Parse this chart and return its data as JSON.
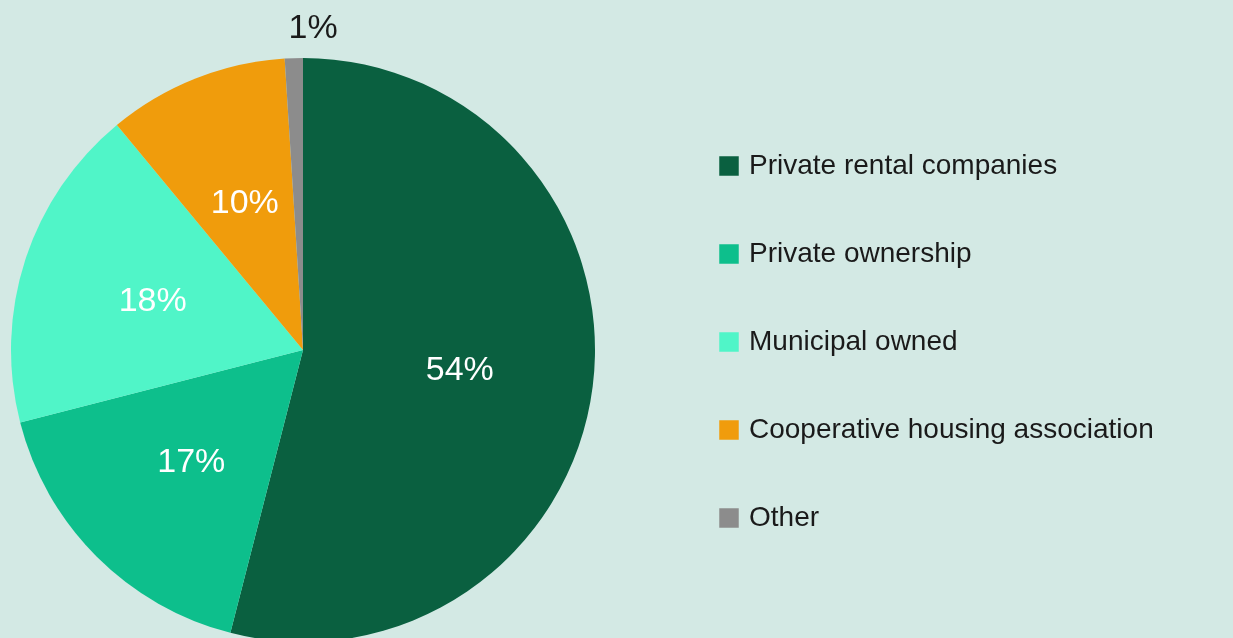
{
  "chart_data": {
    "type": "pie",
    "categories": [
      "Private rental companies",
      "Private ownership",
      "Municipal owned",
      "Cooperative housing association",
      "Other"
    ],
    "values": [
      54,
      17,
      18,
      10,
      1
    ],
    "colors": [
      "#0a6040",
      "#0dbf8c",
      "#50f5c8",
      "#f09c0c",
      "#8c8c8c"
    ],
    "value_labels": [
      "54%",
      "17%",
      "18%",
      "10%",
      "1%"
    ],
    "legend": "right"
  }
}
